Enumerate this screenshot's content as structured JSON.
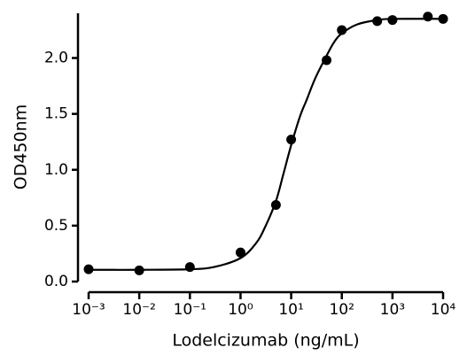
{
  "chart_data": {
    "type": "scatter",
    "x_label": "Lodelcizumab (ng/mL)",
    "y_label": "OD450nm",
    "xscale": "log",
    "xlim": [
      0.001,
      10000
    ],
    "xticks": [
      {
        "value": 0.001,
        "label": "10⁻³"
      },
      {
        "value": 0.01,
        "label": "10⁻²"
      },
      {
        "value": 0.1,
        "label": "10⁻¹"
      },
      {
        "value": 1,
        "label": "10⁰"
      },
      {
        "value": 10,
        "label": "10¹"
      },
      {
        "value": 100,
        "label": "10²"
      },
      {
        "value": 1000,
        "label": "10³"
      },
      {
        "value": 10000,
        "label": "10⁴"
      }
    ],
    "ylim": [
      0,
      2.4
    ],
    "yticks": [
      {
        "value": 0,
        "label": "0.0"
      },
      0.5,
      {
        "value": 1,
        "label": "1.0"
      },
      1.5,
      {
        "value": 2,
        "label": "2.0"
      }
    ],
    "color": "#000000",
    "x": [
      0.001,
      0.01,
      0.1,
      1,
      5,
      10,
      50,
      100,
      500,
      1000,
      5000,
      10000
    ],
    "values": [
      0.11,
      0.1,
      0.13,
      0.26,
      0.685,
      1.27,
      1.98,
      2.25,
      2.33,
      2.34,
      2.37,
      2.35
    ],
    "fit": {
      "x": [
        0.001,
        0.01,
        0.1,
        0.3,
        1,
        2,
        3,
        5,
        7,
        10,
        15,
        20,
        30,
        50,
        70,
        100,
        200,
        500,
        1000,
        10000
      ],
      "values": [
        0.105,
        0.105,
        0.11,
        0.13,
        0.21,
        0.34,
        0.48,
        0.72,
        0.96,
        1.22,
        1.48,
        1.62,
        1.82,
        2.02,
        2.14,
        2.22,
        2.3,
        2.34,
        2.35,
        2.35
      ]
    }
  }
}
